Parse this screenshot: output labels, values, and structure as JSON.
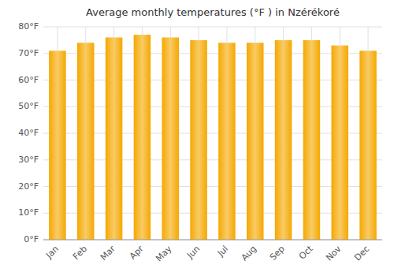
{
  "chart_data": {
    "type": "bar",
    "title": "Average monthly temperatures (°F ) in Nzérékoré",
    "categories": [
      "Jan",
      "Feb",
      "Mar",
      "Apr",
      "May",
      "Jun",
      "Jul",
      "Aug",
      "Sep",
      "Oct",
      "Nov",
      "Dec"
    ],
    "values": [
      71,
      74,
      76,
      77,
      76,
      75,
      74,
      74,
      75,
      75,
      73,
      71
    ],
    "color": "#F5A800",
    "ylim": [
      0,
      80
    ],
    "yticks": [
      {
        "value": 0,
        "label": "0°F"
      },
      {
        "value": 10,
        "label": "10°F"
      },
      {
        "value": 20,
        "label": "20°F"
      },
      {
        "value": 30,
        "label": "30°F"
      },
      {
        "value": 40,
        "label": "40°F"
      },
      {
        "value": 50,
        "label": "50°F"
      },
      {
        "value": 60,
        "label": "60°F"
      },
      {
        "value": 70,
        "label": "70°F"
      },
      {
        "value": 80,
        "label": "80°F"
      }
    ],
    "grid": true
  }
}
